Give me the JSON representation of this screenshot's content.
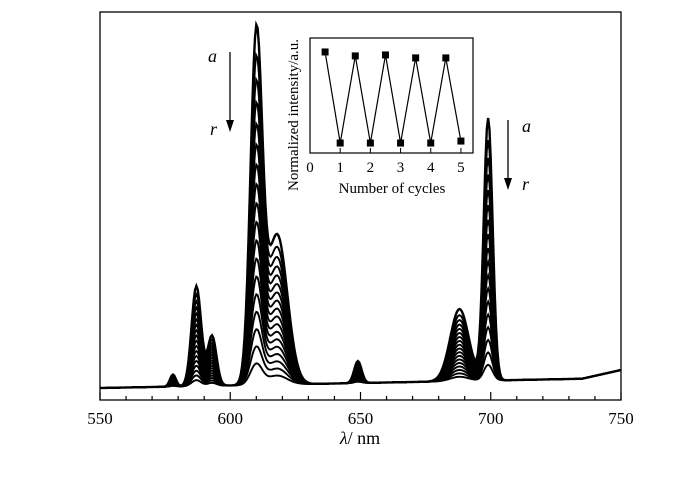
{
  "chart_data": [
    {
      "type": "line",
      "title": "",
      "xlabel_symbol": "λ",
      "xlabel_unit": "/ nm",
      "ylabel": "",
      "xlim": [
        550,
        750
      ],
      "xticks": [
        550,
        600,
        650,
        700,
        750
      ],
      "x_minor_step": 10,
      "grid": false,
      "series_count": 18,
      "peak_x": [
        578,
        587,
        593,
        610,
        618,
        649,
        688,
        699
      ],
      "main_peak_x": 610,
      "annotations": {
        "left": {
          "top_label": "a",
          "bottom_label": "r",
          "x": 612,
          "direction": "down"
        },
        "right": {
          "top_label": "a",
          "bottom_label": "r",
          "x": 702,
          "direction": "down"
        }
      }
    },
    {
      "type": "line",
      "role": "inset",
      "title": "",
      "xlabel": "Number of cycles",
      "ylabel": "Normalized intensity/a.u.",
      "xlim": [
        0,
        5.4
      ],
      "xticks": [
        0,
        1,
        2,
        3,
        4,
        5
      ],
      "ylim": [
        0,
        1
      ],
      "x": [
        0.5,
        1,
        1.5,
        2,
        2.5,
        3,
        3.5,
        4,
        4.5,
        5
      ],
      "y": [
        0.96,
        0.04,
        0.92,
        0.04,
        0.93,
        0.04,
        0.9,
        0.04,
        0.9,
        0.06
      ],
      "marker": "square"
    }
  ]
}
